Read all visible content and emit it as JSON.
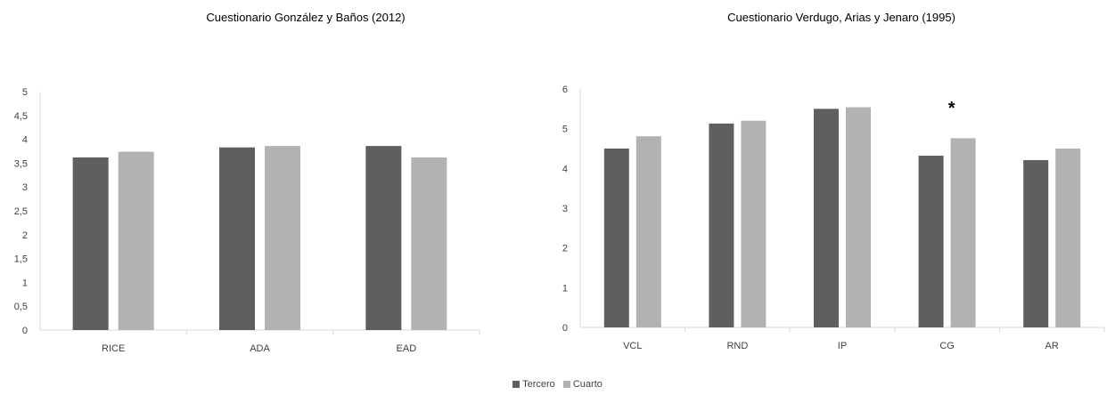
{
  "colors": {
    "series_tercero": "#5f5f5f",
    "series_cuarto": "#b2b2b2",
    "axis": "#d9d9d9"
  },
  "legend": {
    "placement": "bottom-center",
    "items": [
      "Tercero",
      "Cuarto"
    ]
  },
  "chart_data": [
    {
      "type": "bar",
      "title": "Cuestionario González y Baños (2012)",
      "xlabel": "",
      "ylabel": "",
      "categories": [
        "RICE",
        "ADA",
        "EAD"
      ],
      "ylim": [
        0,
        5
      ],
      "yticks": [
        0,
        0.5,
        1,
        1.5,
        2,
        2.5,
        3,
        3.5,
        4,
        4.5,
        5
      ],
      "ytick_labels": [
        "0",
        "0,5",
        "1",
        "1,5",
        "2",
        "2,5",
        "3",
        "3,5",
        "4",
        "4,5",
        "5"
      ],
      "grid": false,
      "series": [
        {
          "name": "Tercero",
          "values": [
            3.62,
            3.83,
            3.86
          ]
        },
        {
          "name": "Cuarto",
          "values": [
            3.74,
            3.86,
            3.62
          ]
        }
      ],
      "annotations": []
    },
    {
      "type": "bar",
      "title": "Cuestionario Verdugo, Arias y Jenaro (1995)",
      "xlabel": "",
      "ylabel": "",
      "categories": [
        "VCL",
        "RND",
        "IP",
        "CG",
        "AR"
      ],
      "ylim": [
        0,
        6
      ],
      "yticks": [
        0,
        1,
        2,
        3,
        4,
        5,
        6
      ],
      "ytick_labels": [
        "0",
        "1",
        "2",
        "3",
        "4",
        "5",
        "6"
      ],
      "grid": false,
      "series": [
        {
          "name": "Tercero",
          "values": [
            4.5,
            5.13,
            5.5,
            4.32,
            4.21
          ]
        },
        {
          "name": "Cuarto",
          "values": [
            4.81,
            5.2,
            5.54,
            4.76,
            4.5
          ]
        }
      ],
      "annotations": [
        {
          "text": "*",
          "category": "CG"
        }
      ]
    }
  ]
}
